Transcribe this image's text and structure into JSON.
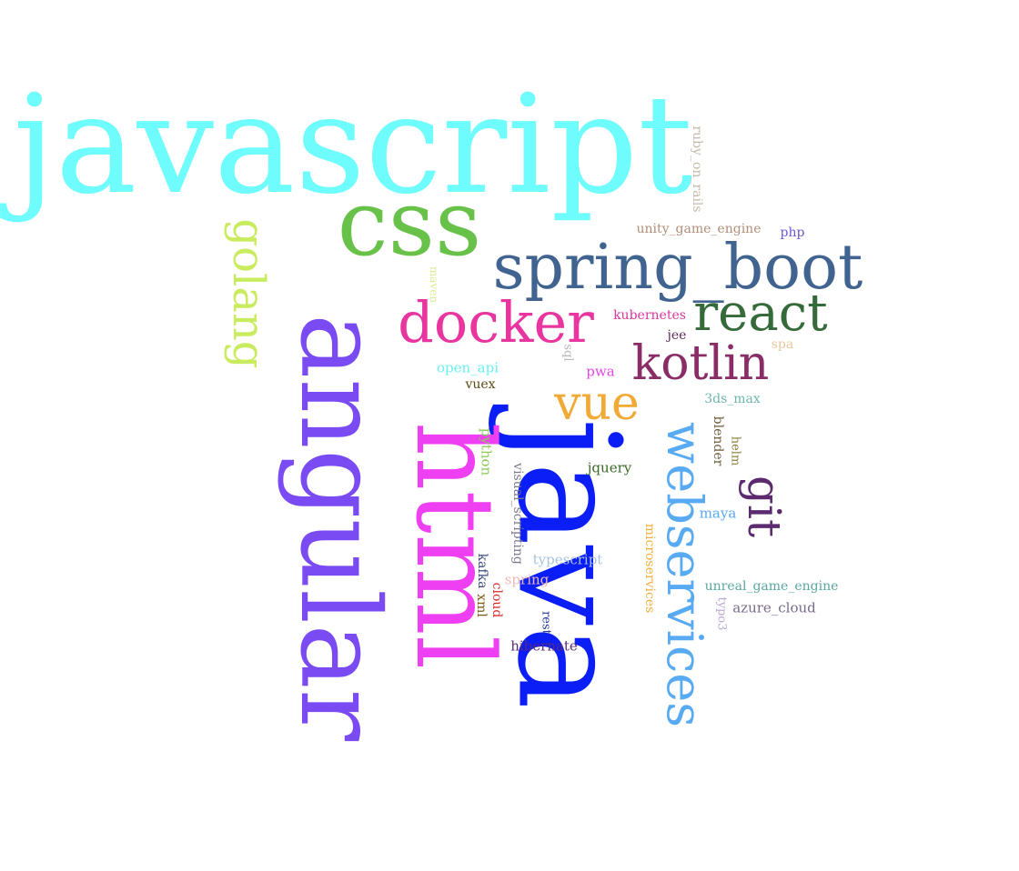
{
  "words": [
    {
      "text": "javascript",
      "color": "#6ffcfc"
    },
    {
      "text": "java",
      "color": "#0a1ef5"
    },
    {
      "text": "angular",
      "color": "#7a4af2"
    },
    {
      "text": "html",
      "color": "#ee3ff2"
    },
    {
      "text": "css",
      "color": "#68c24a"
    },
    {
      "text": "spring_boot",
      "color": "#41638f"
    },
    {
      "text": "webservices",
      "color": "#58aaf2"
    },
    {
      "text": "docker",
      "color": "#e8359f"
    },
    {
      "text": "golang",
      "color": "#c9ec5e"
    },
    {
      "text": "react",
      "color": "#356b3a"
    },
    {
      "text": "kotlin",
      "color": "#8a2c66"
    },
    {
      "text": "vue",
      "color": "#f0aa35"
    },
    {
      "text": "git",
      "color": "#5c2a6e"
    },
    {
      "text": "ruby_on_rails",
      "color": "#c4b9a8"
    },
    {
      "text": "unity_game_engine",
      "color": "#b18f79"
    },
    {
      "text": "php",
      "color": "#6b58d6"
    },
    {
      "text": "maven",
      "color": "#d9ec96"
    },
    {
      "text": "kubernetes",
      "color": "#d9359f"
    },
    {
      "text": "jee",
      "color": "#5b2a58"
    },
    {
      "text": "spa",
      "color": "#e8c79c"
    },
    {
      "text": "sql",
      "color": "#b8b8b8"
    },
    {
      "text": "open_api",
      "color": "#6cf0f0"
    },
    {
      "text": "pwa",
      "color": "#e247e6"
    },
    {
      "text": "vuex",
      "color": "#5c4a14"
    },
    {
      "text": "3ds_max",
      "color": "#6eb7ab"
    },
    {
      "text": "blender",
      "color": "#6e5a38"
    },
    {
      "text": "helm",
      "color": "#8a7d3a"
    },
    {
      "text": "python",
      "color": "#8bc85a"
    },
    {
      "text": "visual_scripting",
      "color": "#7a7a8a"
    },
    {
      "text": "jquery",
      "color": "#3a6a2a"
    },
    {
      "text": "maya",
      "color": "#58aaf2"
    },
    {
      "text": "microservices",
      "color": "#f0b040"
    },
    {
      "text": "typescript",
      "color": "#a8c4dc"
    },
    {
      "text": "kafka",
      "color": "#3a4a7a"
    },
    {
      "text": "xml",
      "color": "#7a5a1a"
    },
    {
      "text": "spring",
      "color": "#f0b8b8"
    },
    {
      "text": "cloud",
      "color": "#d8282a"
    },
    {
      "text": "unreal_game_engine",
      "color": "#58a8a0"
    },
    {
      "text": "typo3",
      "color": "#b8a8d0"
    },
    {
      "text": "azure_cloud",
      "color": "#7a6a8a"
    },
    {
      "text": "rest",
      "color": "#2a3a9a"
    },
    {
      "text": "hibernate",
      "color": "#5a2a7a"
    }
  ]
}
